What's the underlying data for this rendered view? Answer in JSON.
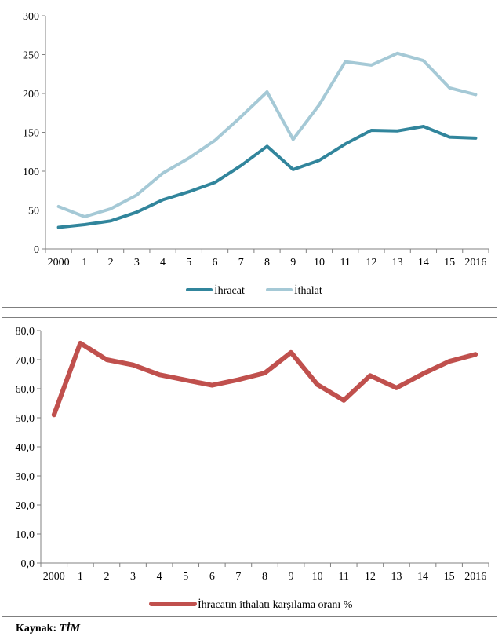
{
  "chart_data": [
    {
      "type": "line",
      "categories": [
        "2000",
        "1",
        "2",
        "3",
        "4",
        "5",
        "6",
        "7",
        "8",
        "9",
        "10",
        "11",
        "12",
        "13",
        "14",
        "15",
        "2016"
      ],
      "ylim": [
        0,
        300
      ],
      "yticks": [
        0,
        50,
        100,
        150,
        200,
        250,
        300
      ],
      "ytick_labels": [
        "0",
        "50",
        "100",
        "150",
        "200",
        "250",
        "300"
      ],
      "grid": false,
      "legend_position": "bottom",
      "series": [
        {
          "name": "İhracat",
          "color": "#31859c",
          "values": [
            27.8,
            31.3,
            36.1,
            47.3,
            63.2,
            73.5,
            85.5,
            107.3,
            132.0,
            102.1,
            113.9,
            134.9,
            152.5,
            151.8,
            157.6,
            143.8,
            142.5
          ]
        },
        {
          "name": "İthalat",
          "color": "#a5c9d6",
          "values": [
            54.5,
            41.4,
            51.6,
            69.3,
            97.5,
            116.8,
            139.6,
            170.1,
            202.0,
            140.9,
            185.5,
            240.8,
            236.5,
            251.7,
            242.2,
            207.2,
            198.6
          ]
        }
      ]
    },
    {
      "type": "line",
      "categories": [
        "2000",
        "1",
        "2",
        "3",
        "4",
        "5",
        "6",
        "7",
        "8",
        "9",
        "10",
        "11",
        "12",
        "13",
        "14",
        "15",
        "2016"
      ],
      "ylim": [
        0,
        80
      ],
      "yticks": [
        0,
        10,
        20,
        30,
        40,
        50,
        60,
        70,
        80
      ],
      "ytick_labels": [
        "0,0",
        "10,0",
        "20,0",
        "30,0",
        "40,0",
        "50,0",
        "60,0",
        "70,0",
        "80,0"
      ],
      "grid": false,
      "legend_position": "bottom",
      "series": [
        {
          "name": "İhracatın ithalatı karşılama oranı %",
          "color": "#c0504d",
          "values": [
            51.0,
            75.7,
            70.0,
            68.2,
            64.8,
            63.0,
            61.2,
            63.1,
            65.4,
            72.5,
            61.4,
            56.0,
            64.5,
            60.3,
            65.1,
            69.4,
            71.8
          ]
        }
      ]
    }
  ],
  "source": {
    "label": "Kaynak:",
    "value": "TİM"
  }
}
